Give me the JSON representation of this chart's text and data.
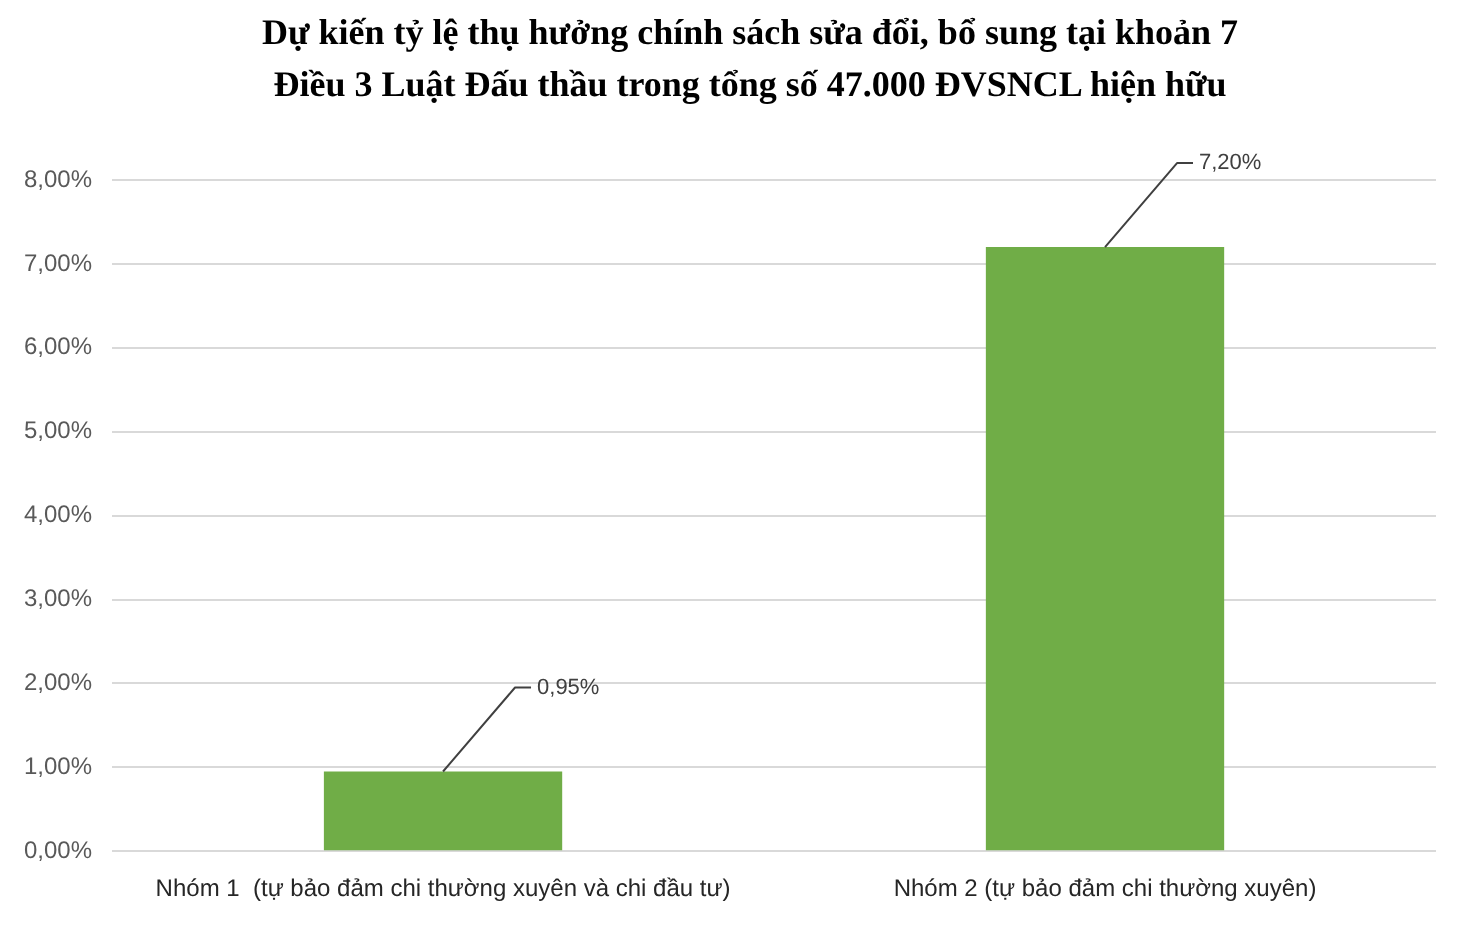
{
  "chart_data": {
    "type": "bar",
    "title": "Dự kiến tỷ lệ thụ hưởng chính sách sửa đổi, bổ sung tại khoản 7 Điều 3 Luật Đấu thầu trong tổng số 47.000 ĐVSNCL hiện hữu",
    "categories": [
      "Nhóm 1  (tự bảo đảm chi thường xuyên và chi đầu tư)",
      "Nhóm 2 (tự bảo đảm chi thường xuyên)"
    ],
    "values": [
      0.95,
      7.2
    ],
    "value_labels": [
      "0,95%",
      "7,20%"
    ],
    "color": "#70ad47",
    "ylim": [
      0,
      8
    ],
    "yticks": [
      {
        "value": 0,
        "label": "0,00%"
      },
      {
        "value": 1,
        "label": "1,00%"
      },
      {
        "value": 2,
        "label": "2,00%"
      },
      {
        "value": 3,
        "label": "3,00%"
      },
      {
        "value": 4,
        "label": "4,00%"
      },
      {
        "value": 5,
        "label": "5,00%"
      },
      {
        "value": 6,
        "label": "6,00%"
      },
      {
        "value": 7,
        "label": "7,00%"
      },
      {
        "value": 8,
        "label": "8,00%"
      }
    ],
    "grid": "y",
    "legend": false
  }
}
